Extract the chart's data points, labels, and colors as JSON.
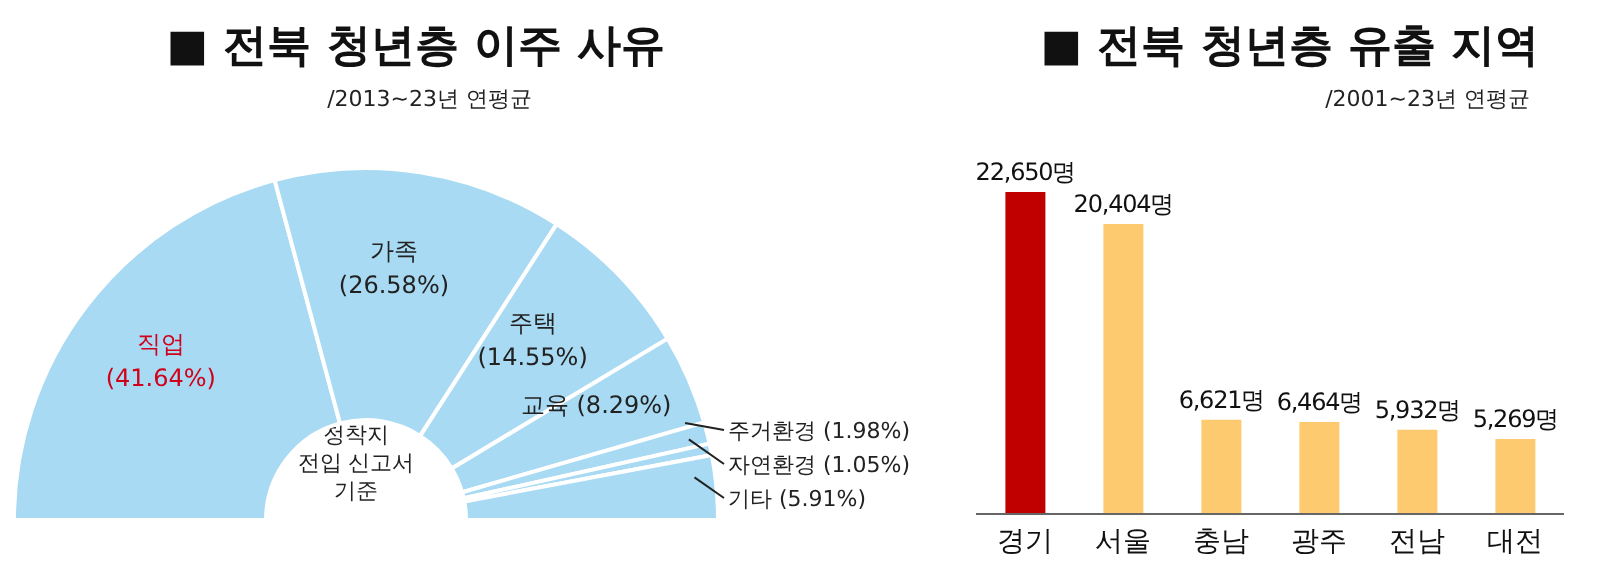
{
  "chart_data": [
    {
      "type": "donut",
      "title": "■ 전북 청년층 이주 사유",
      "subtitle": "/2013~23년 연평균",
      "categories": [
        "직업",
        "가족",
        "주택",
        "교육",
        "주거환경",
        "자연환경",
        "기타"
      ],
      "values": [
        41.64,
        26.58,
        14.55,
        8.29,
        1.98,
        1.05,
        5.91
      ],
      "value_labels": [
        "(41.64%)",
        "(26.58%)",
        "(14.55%)",
        "(8.29%)",
        "(1.98%)",
        "(1.05%)",
        "(5.91%)"
      ],
      "colors": [
        "#a8daf3",
        "#a8daf3",
        "#a8daf3",
        "#a8daf3",
        "#a8daf3",
        "#a8daf3",
        "#a8daf3"
      ],
      "annotations": [
        "정착지\n전입 신고서\n기준"
      ],
      "legend": false
    },
    {
      "type": "bar",
      "title": "■ 전북 청년층 유출 지역",
      "subtitle": "/2001~23년 연평균",
      "categories": [
        "경기",
        "서울",
        "충남",
        "광주",
        "전남",
        "대전"
      ],
      "values": [
        22650,
        20404,
        6621,
        6464,
        5932,
        5269
      ],
      "value_labels": [
        "22,650명",
        "20,404명",
        "6,621명",
        "6,464명",
        "5,932명",
        "5,269명"
      ],
      "colors": [
        "#c00000",
        "#fdca6f",
        "#fdca6f",
        "#fdca6f",
        "#fdca6f",
        "#fdca6f"
      ],
      "legend": false
    }
  ]
}
